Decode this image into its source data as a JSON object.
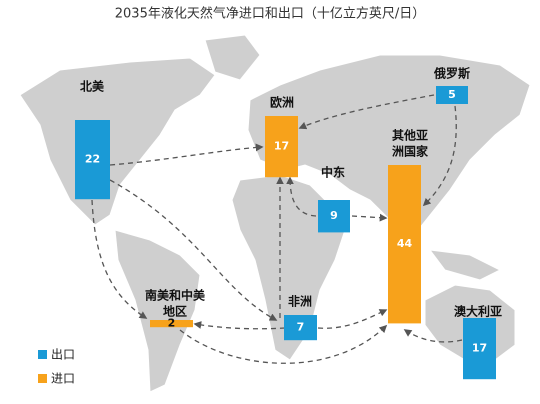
{
  "title": "2035年液化天然气净进口和出口（十亿立方英尺/日）",
  "legend": [
    {
      "label": "出口",
      "color": "#1a9ad6"
    },
    {
      "label": "进口",
      "color": "#f7a21b"
    }
  ],
  "regions": [
    {
      "label": [
        "北美"
      ],
      "value": 22,
      "kind": 0
    },
    {
      "label": [
        "欧洲"
      ],
      "value": 17,
      "kind": 1
    },
    {
      "label": [
        "俄罗斯"
      ],
      "value": 5,
      "kind": 0
    },
    {
      "label": [
        "中东"
      ],
      "value": 9,
      "kind": 0
    },
    {
      "label": [
        "其他亚",
        "洲国家"
      ],
      "value": 44,
      "kind": 1
    },
    {
      "label": [
        "南美和中美",
        "地区"
      ],
      "value": 2,
      "kind": 1
    },
    {
      "label": [
        "非洲"
      ],
      "value": 7,
      "kind": 0
    },
    {
      "label": [
        "澳大利亚"
      ],
      "value": 17,
      "kind": 0
    }
  ]
}
